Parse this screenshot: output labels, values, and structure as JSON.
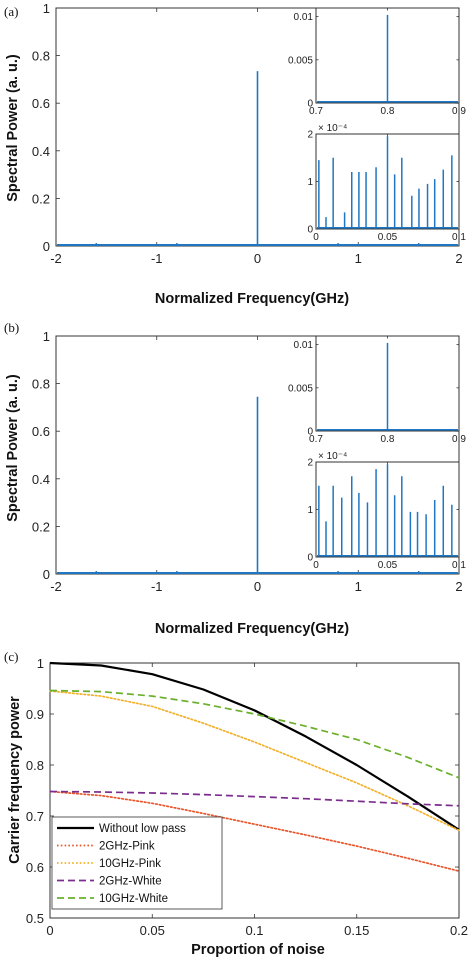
{
  "chart_data": [
    {
      "type": "line",
      "panel_label": "(a)",
      "xlabel": "Normalized Frequency(GHz)",
      "ylabel": "Spectral Power (a. u.)",
      "xlim": [
        -2,
        2
      ],
      "ylim": [
        0,
        1
      ],
      "xticks": [
        "-2",
        "-1",
        "0",
        "1",
        "2"
      ],
      "yticks": [
        "0",
        "0.2",
        "0.4",
        "0.6",
        "0.8",
        "1"
      ],
      "color": "#1f77c4",
      "peak": {
        "x": 0,
        "y": 0.735
      },
      "minor_peaks": [
        {
          "x": -1.6,
          "y": 0.004
        },
        {
          "x": -0.8,
          "y": 0.004
        },
        {
          "x": 0.8,
          "y": 0.004
        },
        {
          "x": 1.6,
          "y": 0.004
        }
      ],
      "insets": [
        {
          "xlim": [
            0.7,
            0.9
          ],
          "ylim": [
            0,
            0.011
          ],
          "xticks": [
            "0.7",
            "0.8",
            "0.9"
          ],
          "yticks": [
            "0",
            "0.005",
            "0.01"
          ],
          "peaks": [
            {
              "x": 0.8,
              "y": 0.0102
            }
          ]
        },
        {
          "xlim": [
            0,
            0.1
          ],
          "ylim": [
            0,
            2
          ],
          "exponent": "× 10⁻⁴",
          "xticks": [
            "0",
            "0.05",
            "0.1"
          ],
          "yticks": [
            "0",
            "1",
            "2"
          ],
          "peaks": [
            {
              "x": 0.002,
              "y": 1.45
            },
            {
              "x": 0.007,
              "y": 0.25
            },
            {
              "x": 0.012,
              "y": 1.5
            },
            {
              "x": 0.02,
              "y": 0.35
            },
            {
              "x": 0.025,
              "y": 1.2
            },
            {
              "x": 0.03,
              "y": 1.2
            },
            {
              "x": 0.035,
              "y": 1.2
            },
            {
              "x": 0.042,
              "y": 1.3
            },
            {
              "x": 0.05,
              "y": 1.95
            },
            {
              "x": 0.055,
              "y": 1.15
            },
            {
              "x": 0.06,
              "y": 1.5
            },
            {
              "x": 0.067,
              "y": 0.7
            },
            {
              "x": 0.072,
              "y": 0.85
            },
            {
              "x": 0.078,
              "y": 0.95
            },
            {
              "x": 0.083,
              "y": 1.05
            },
            {
              "x": 0.089,
              "y": 1.25
            },
            {
              "x": 0.095,
              "y": 1.55
            }
          ]
        }
      ]
    },
    {
      "type": "line",
      "panel_label": "(b)",
      "xlabel": "Normalized Frequency(GHz)",
      "ylabel": "Spectral Power (a. u.)",
      "xlim": [
        -2,
        2
      ],
      "ylim": [
        0,
        1
      ],
      "xticks": [
        "-2",
        "-1",
        "0",
        "1",
        "2"
      ],
      "yticks": [
        "0",
        "0.2",
        "0.4",
        "0.6",
        "0.8",
        "1"
      ],
      "color": "#1f77c4",
      "peak": {
        "x": 0,
        "y": 0.745
      },
      "minor_peaks": [
        {
          "x": -1.6,
          "y": 0.004
        },
        {
          "x": -0.8,
          "y": 0.004
        },
        {
          "x": 0.8,
          "y": 0.004
        },
        {
          "x": 1.6,
          "y": 0.004
        }
      ],
      "insets": [
        {
          "xlim": [
            0.7,
            0.9
          ],
          "ylim": [
            0,
            0.011
          ],
          "xticks": [
            "0.7",
            "0.8",
            "0.9"
          ],
          "yticks": [
            "0",
            "0.005",
            "0.01"
          ],
          "peaks": [
            {
              "x": 0.8,
              "y": 0.0102
            }
          ]
        },
        {
          "xlim": [
            0,
            0.1
          ],
          "ylim": [
            0,
            2
          ],
          "exponent": "× 10⁻⁴",
          "xticks": [
            "0",
            "0.05",
            "0.1"
          ],
          "yticks": [
            "0",
            "1",
            "2"
          ],
          "peaks": [
            {
              "x": 0.002,
              "y": 1.5
            },
            {
              "x": 0.007,
              "y": 0.75
            },
            {
              "x": 0.012,
              "y": 1.5
            },
            {
              "x": 0.018,
              "y": 1.25
            },
            {
              "x": 0.025,
              "y": 1.7
            },
            {
              "x": 0.03,
              "y": 1.35
            },
            {
              "x": 0.036,
              "y": 1.15
            },
            {
              "x": 0.042,
              "y": 1.85
            },
            {
              "x": 0.05,
              "y": 1.95
            },
            {
              "x": 0.055,
              "y": 1.3
            },
            {
              "x": 0.06,
              "y": 1.7
            },
            {
              "x": 0.066,
              "y": 0.95
            },
            {
              "x": 0.071,
              "y": 0.95
            },
            {
              "x": 0.077,
              "y": 0.9
            },
            {
              "x": 0.083,
              "y": 1.2
            },
            {
              "x": 0.089,
              "y": 1.5
            },
            {
              "x": 0.095,
              "y": 1.1
            }
          ]
        }
      ]
    },
    {
      "type": "line",
      "panel_label": "(c)",
      "xlabel": "Proportion of noise",
      "ylabel": "Carrier frequency power",
      "xlim": [
        0,
        0.2
      ],
      "ylim": [
        0.5,
        1
      ],
      "xticks": [
        "0",
        "0.05",
        "0.1",
        "0.15",
        "0.2"
      ],
      "yticks": [
        "0.5",
        "0.6",
        "0.7",
        "0.8",
        "0.9",
        "1"
      ],
      "legend_position": "bottom-left",
      "series": [
        {
          "name": "Without low pass",
          "color": "#000000",
          "dash": "solid",
          "x": [
            0,
            0.025,
            0.05,
            0.075,
            0.1,
            0.125,
            0.15,
            0.175,
            0.2
          ],
          "y": [
            1.0,
            0.995,
            0.978,
            0.948,
            0.907,
            0.856,
            0.8,
            0.738,
            0.673
          ]
        },
        {
          "name": "2GHz-Pink",
          "color": "#e8552a",
          "dash": "dot",
          "x": [
            0,
            0.025,
            0.05,
            0.075,
            0.1,
            0.125,
            0.15,
            0.175,
            0.2
          ],
          "y": [
            0.748,
            0.74,
            0.725,
            0.705,
            0.684,
            0.663,
            0.641,
            0.617,
            0.592
          ]
        },
        {
          "name": "10GHz-Pink",
          "color": "#f2b12a",
          "dash": "dot",
          "x": [
            0,
            0.025,
            0.05,
            0.075,
            0.1,
            0.125,
            0.15,
            0.175,
            0.2
          ],
          "y": [
            0.945,
            0.935,
            0.915,
            0.882,
            0.845,
            0.805,
            0.765,
            0.72,
            0.672
          ]
        },
        {
          "name": "2GHz-White",
          "color": "#7b2d8e",
          "dash": "dash",
          "x": [
            0,
            0.025,
            0.05,
            0.075,
            0.1,
            0.125,
            0.15,
            0.175,
            0.2
          ],
          "y": [
            0.748,
            0.747,
            0.745,
            0.742,
            0.738,
            0.734,
            0.729,
            0.724,
            0.72
          ]
        },
        {
          "name": "10GHz-White",
          "color": "#6ab02c",
          "dash": "dash",
          "x": [
            0,
            0.025,
            0.05,
            0.075,
            0.1,
            0.125,
            0.15,
            0.175,
            0.2
          ],
          "y": [
            0.946,
            0.944,
            0.935,
            0.92,
            0.9,
            0.876,
            0.85,
            0.815,
            0.775
          ]
        }
      ]
    }
  ]
}
